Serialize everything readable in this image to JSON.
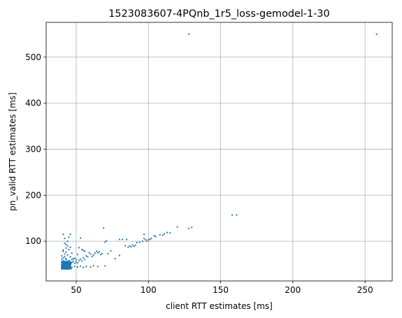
{
  "chart_data": {
    "type": "scatter",
    "title": "1523083607-4PQnb_1r5_loss-gemodel-1-30",
    "xlabel": "client RTT estimates [ms]",
    "ylabel": "pn_valid RTT estimates [ms]",
    "xlim": [
      29.2,
      268.8
    ],
    "ylim": [
      13.6,
      575.6
    ],
    "xticks": [
      50,
      100,
      150,
      200,
      250
    ],
    "yticks": [
      100,
      200,
      300,
      400,
      500
    ],
    "grid": true,
    "color": "#1f77b4",
    "points": [
      [
        128,
        550
      ],
      [
        258,
        550
      ],
      [
        158,
        157
      ],
      [
        161,
        157
      ],
      [
        130,
        130
      ],
      [
        128,
        128
      ],
      [
        120,
        131
      ],
      [
        115,
        118
      ],
      [
        113,
        119
      ],
      [
        111,
        116
      ],
      [
        110,
        113
      ],
      [
        108,
        114
      ],
      [
        105,
        110
      ],
      [
        104,
        112
      ],
      [
        102,
        106
      ],
      [
        101,
        104
      ],
      [
        100,
        103
      ],
      [
        99,
        100
      ],
      [
        98,
        103
      ],
      [
        97,
        115
      ],
      [
        97,
        106
      ],
      [
        96,
        100
      ],
      [
        94,
        98
      ],
      [
        92,
        97
      ],
      [
        91,
        91
      ],
      [
        90,
        89
      ],
      [
        89,
        92
      ],
      [
        88,
        88
      ],
      [
        87,
        90
      ],
      [
        86,
        87
      ],
      [
        85,
        104
      ],
      [
        84,
        90
      ],
      [
        82,
        104
      ],
      [
        80,
        104
      ],
      [
        80,
        69
      ],
      [
        77,
        62
      ],
      [
        74,
        79
      ],
      [
        72,
        73
      ],
      [
        71,
        101
      ],
      [
        70,
        98
      ],
      [
        70,
        46
      ],
      [
        69,
        129
      ],
      [
        68,
        73
      ],
      [
        67,
        71
      ],
      [
        66,
        77
      ],
      [
        65,
        75
      ],
      [
        64,
        78
      ],
      [
        63,
        74
      ],
      [
        62,
        70
      ],
      [
        61,
        67
      ],
      [
        60,
        72
      ],
      [
        59,
        75
      ],
      [
        58,
        66
      ],
      [
        57,
        68
      ],
      [
        56,
        78
      ],
      [
        56,
        60
      ],
      [
        55,
        80
      ],
      [
        55,
        64
      ],
      [
        54,
        82
      ],
      [
        54,
        57
      ],
      [
        53,
        107
      ],
      [
        53,
        61
      ],
      [
        52,
        86
      ],
      [
        52,
        58
      ],
      [
        51,
        71
      ],
      [
        51,
        53
      ],
      [
        50,
        55
      ],
      [
        50,
        60
      ],
      [
        49,
        63
      ],
      [
        49,
        52
      ],
      [
        48,
        56
      ],
      [
        48,
        62
      ],
      [
        47,
        60
      ],
      [
        46,
        115
      ],
      [
        45,
        109
      ],
      [
        41,
        115
      ],
      [
        42,
        106
      ],
      [
        44,
        100
      ],
      [
        44,
        90
      ],
      [
        46,
        87
      ],
      [
        43,
        85
      ],
      [
        45,
        82
      ],
      [
        41,
        78
      ],
      [
        43,
        76
      ],
      [
        47,
        74
      ],
      [
        42,
        72
      ],
      [
        44,
        70
      ],
      [
        40,
        68
      ],
      [
        46,
        66
      ],
      [
        41,
        64
      ],
      [
        48,
        62
      ],
      [
        43,
        60
      ],
      [
        45,
        58
      ],
      [
        40,
        56
      ],
      [
        47,
        54
      ],
      [
        42,
        52
      ],
      [
        44,
        50
      ],
      [
        41,
        48
      ],
      [
        46,
        46
      ],
      [
        43,
        44
      ],
      [
        45,
        42
      ],
      [
        47,
        43
      ],
      [
        49,
        45
      ],
      [
        51,
        44
      ],
      [
        53,
        46
      ],
      [
        55,
        43
      ],
      [
        57,
        45
      ],
      [
        60,
        44
      ],
      [
        62,
        47
      ],
      [
        65,
        45
      ],
      [
        44,
        56
      ],
      [
        43,
        62
      ],
      [
        42,
        66
      ],
      [
        41,
        58
      ],
      [
        40,
        61
      ],
      [
        42,
        96
      ],
      [
        43,
        93
      ],
      [
        41,
        81
      ]
    ],
    "cluster": {
      "x_range": [
        40,
        47
      ],
      "y_range": [
        40,
        56
      ],
      "count": 420
    }
  }
}
